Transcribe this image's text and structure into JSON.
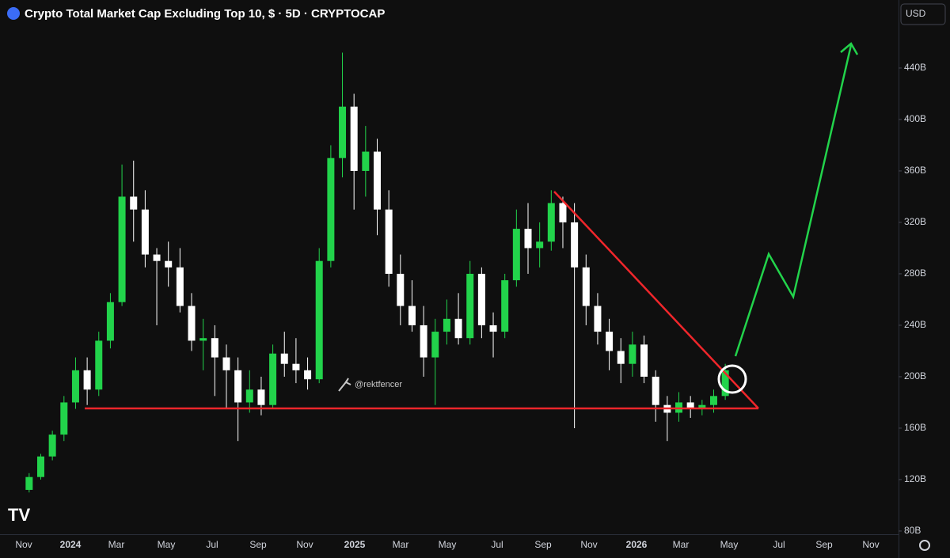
{
  "chart_data": {
    "type": "candlestick",
    "title": "Crypto Total Market Cap Excluding Top 10, $ · 5D · CRYPTOCAP",
    "up_color": "#22d34b",
    "down_color": "#ffffff",
    "ylim": [
      77.5,
      492.9
    ],
    "yticks": [
      {
        "value": 80,
        "label": "80B"
      },
      {
        "value": 120,
        "label": "120B"
      },
      {
        "value": 160,
        "label": "160B"
      },
      {
        "value": 200,
        "label": "200B"
      },
      {
        "value": 240,
        "label": "240B"
      },
      {
        "value": 280,
        "label": "280B"
      },
      {
        "value": 320,
        "label": "320B"
      },
      {
        "value": 360,
        "label": "360B"
      },
      {
        "value": 400,
        "label": "400B"
      },
      {
        "value": 440,
        "label": "440B"
      }
    ],
    "xtick_labels": [
      "Nov",
      "2024",
      "Mar",
      "May",
      "Jul",
      "Sep",
      "Nov",
      "2025",
      "Mar",
      "May",
      "Jul",
      "Sep",
      "Nov",
      "2026",
      "Mar",
      "May",
      "Jul",
      "Sep",
      "Nov"
    ],
    "ohlc": [
      [
        112,
        125,
        110,
        122
      ],
      [
        122,
        140,
        120,
        138
      ],
      [
        138,
        158,
        135,
        155
      ],
      [
        155,
        185,
        150,
        180
      ],
      [
        180,
        215,
        175,
        205
      ],
      [
        205,
        215,
        178,
        190
      ],
      [
        190,
        235,
        185,
        228
      ],
      [
        228,
        265,
        222,
        258
      ],
      [
        258,
        365,
        255,
        340
      ],
      [
        340,
        368,
        305,
        330
      ],
      [
        330,
        345,
        285,
        295
      ],
      [
        295,
        300,
        240,
        290
      ],
      [
        290,
        305,
        270,
        285
      ],
      [
        285,
        300,
        250,
        255
      ],
      [
        255,
        265,
        220,
        228
      ],
      [
        228,
        245,
        205,
        230
      ],
      [
        230,
        240,
        185,
        215
      ],
      [
        215,
        225,
        175,
        205
      ],
      [
        205,
        215,
        150,
        180
      ],
      [
        180,
        205,
        172,
        190
      ],
      [
        190,
        200,
        170,
        178
      ],
      [
        178,
        225,
        175,
        218
      ],
      [
        218,
        235,
        200,
        210
      ],
      [
        210,
        230,
        195,
        205
      ],
      [
        205,
        215,
        190,
        198
      ],
      [
        198,
        300,
        195,
        290
      ],
      [
        290,
        380,
        285,
        370
      ],
      [
        370,
        452,
        355,
        410
      ],
      [
        410,
        420,
        330,
        360
      ],
      [
        360,
        395,
        340,
        375
      ],
      [
        375,
        385,
        310,
        330
      ],
      [
        330,
        345,
        270,
        280
      ],
      [
        280,
        295,
        240,
        255
      ],
      [
        255,
        275,
        235,
        240
      ],
      [
        240,
        255,
        200,
        215
      ],
      [
        215,
        245,
        178,
        235
      ],
      [
        235,
        260,
        225,
        245
      ],
      [
        245,
        265,
        225,
        230
      ],
      [
        230,
        290,
        225,
        280
      ],
      [
        280,
        285,
        230,
        240
      ],
      [
        240,
        250,
        215,
        235
      ],
      [
        235,
        280,
        230,
        275
      ],
      [
        275,
        330,
        270,
        315
      ],
      [
        315,
        335,
        280,
        300
      ],
      [
        300,
        320,
        285,
        305
      ],
      [
        305,
        345,
        298,
        335
      ],
      [
        335,
        340,
        300,
        320
      ],
      [
        320,
        335,
        160,
        285
      ],
      [
        285,
        295,
        240,
        255
      ],
      [
        255,
        265,
        225,
        235
      ],
      [
        235,
        245,
        205,
        220
      ],
      [
        220,
        230,
        195,
        210
      ],
      [
        210,
        235,
        200,
        225
      ],
      [
        225,
        232,
        195,
        200
      ],
      [
        200,
        205,
        165,
        178
      ],
      [
        178,
        185,
        150,
        172
      ],
      [
        172,
        188,
        165,
        180
      ],
      [
        180,
        185,
        168,
        175
      ],
      [
        175,
        182,
        170,
        178
      ],
      [
        178,
        190,
        172,
        185
      ],
      [
        185,
        210,
        182,
        205
      ]
    ]
  },
  "ui": {
    "currency": "USD",
    "watermark": "@rektfencer"
  }
}
